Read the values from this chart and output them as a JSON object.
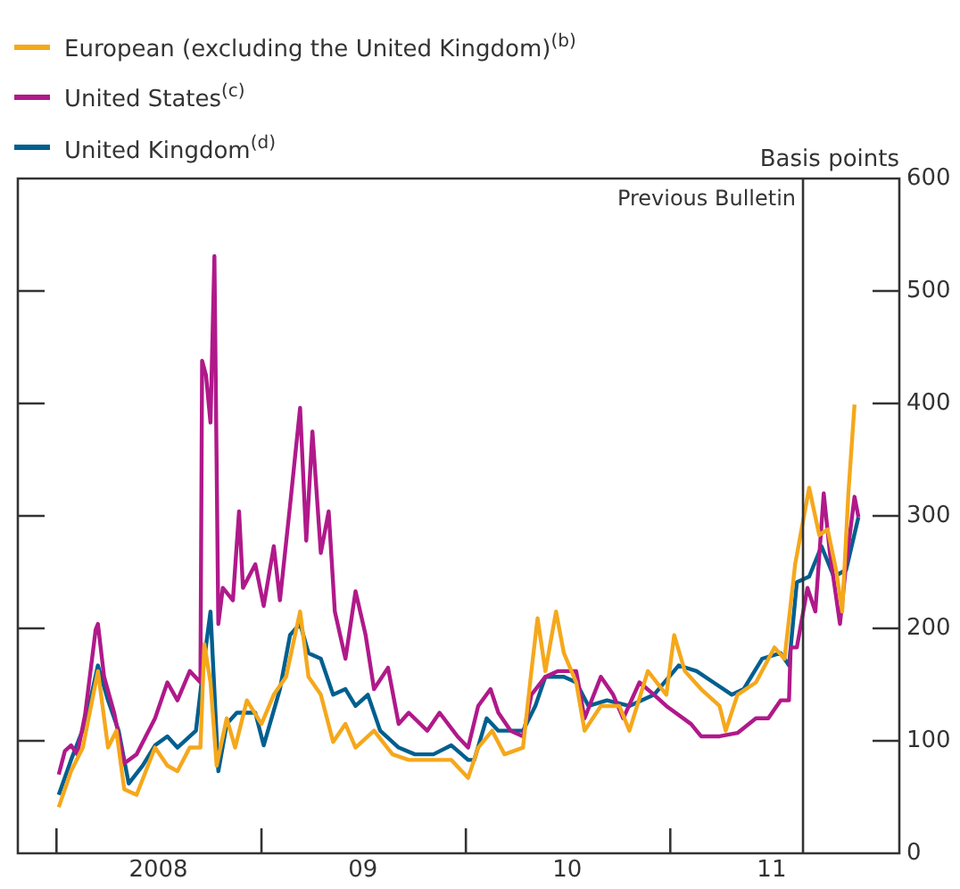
{
  "chart_data": {
    "type": "line",
    "ylabel": "Basis points",
    "legend": "top left",
    "marker": "none",
    "line_style": "solid",
    "grid": false,
    "xlim": [
      "2007-10-24",
      "2012-02-14"
    ],
    "ylim": [
      0,
      600
    ],
    "yticks": [
      0,
      100,
      200,
      300,
      400,
      500,
      600
    ],
    "xticks": [
      {
        "value": "2008-01-01",
        "label": null
      },
      {
        "value": "2008-07-01",
        "label": "2008"
      },
      {
        "value": "2009-01-01",
        "label": null
      },
      {
        "value": "2009-07-01",
        "label": "09"
      },
      {
        "value": "2010-01-01",
        "label": null
      },
      {
        "value": "2010-07-01",
        "label": "10"
      },
      {
        "value": "2011-01-01",
        "label": null
      },
      {
        "value": "2011-07-01",
        "label": "11"
      }
    ],
    "ref_lines": [
      {
        "axis": "x",
        "value": "2011-08-26",
        "label": "Previous Bulletin"
      }
    ],
    "series": [
      {
        "name": "European (excluding the United Kingdom)$^{(b)}$",
        "color": "#f5a81c",
        "x": [
          "2008-01-05",
          "2008-01-27",
          "2008-02-17",
          "2008-03-15",
          "2008-04-02",
          "2008-04-17",
          "2008-05-01",
          "2008-05-23",
          "2008-06-25",
          "2008-07-17",
          "2008-08-04",
          "2008-08-26",
          "2008-09-14",
          "2008-09-21",
          "2008-10-02",
          "2008-10-13",
          "2008-10-31",
          "2008-11-15",
          "2008-12-06",
          "2009-01-01",
          "2009-01-23",
          "2009-02-14",
          "2009-03-11",
          "2009-03-26",
          "2009-04-17",
          "2009-05-09",
          "2009-05-31",
          "2009-06-18",
          "2009-07-21",
          "2009-08-23",
          "2009-09-21",
          "2009-10-24",
          "2009-12-06",
          "2010-01-05",
          "2010-01-23",
          "2010-02-17",
          "2010-03-11",
          "2010-04-13",
          "2010-04-28",
          "2010-05-09",
          "2010-05-23",
          "2010-06-11",
          "2010-06-25",
          "2010-07-17",
          "2010-08-01",
          "2010-08-30",
          "2010-10-02",
          "2010-10-20",
          "2010-11-22",
          "2010-12-25",
          "2011-01-08",
          "2011-01-27",
          "2011-02-25",
          "2011-03-30",
          "2011-04-10",
          "2011-05-01",
          "2011-06-03",
          "2011-07-06",
          "2011-07-24",
          "2011-08-12",
          "2011-09-06",
          "2011-09-24",
          "2011-10-09",
          "2011-10-24",
          "2011-11-04",
          "2011-11-15",
          "2011-11-26"
        ],
        "values": [
          41,
          73,
          94,
          162,
          94,
          109,
          57,
          52,
          94,
          78,
          73,
          94,
          94,
          186,
          152,
          78,
          120,
          94,
          136,
          115,
          141,
          157,
          215,
          157,
          141,
          99,
          115,
          94,
          109,
          88,
          83,
          83,
          83,
          67,
          94,
          109,
          88,
          94,
          162,
          209,
          162,
          215,
          178,
          152,
          109,
          131,
          131,
          109,
          162,
          141,
          194,
          162,
          146,
          131,
          109,
          141,
          152,
          183,
          173,
          257,
          325,
          283,
          288,
          252,
          215,
          320,
          399
        ]
      },
      {
        "name": "United States$^{(c)}$",
        "color": "#b0198a",
        "x": [
          "2008-01-05",
          "2008-01-16",
          "2008-01-27",
          "2008-02-07",
          "2008-02-21",
          "2008-03-11",
          "2008-03-15",
          "2008-03-26",
          "2008-04-13",
          "2008-05-01",
          "2008-05-23",
          "2008-06-25",
          "2008-07-17",
          "2008-08-04",
          "2008-08-26",
          "2008-09-14",
          "2008-09-17",
          "2008-09-24",
          "2008-10-02",
          "2008-10-09",
          "2008-10-16",
          "2008-10-24",
          "2008-11-11",
          "2008-11-22",
          "2008-11-29",
          "2008-12-21",
          "2009-01-05",
          "2009-01-23",
          "2009-02-03",
          "2009-02-21",
          "2009-03-11",
          "2009-03-22",
          "2009-04-02",
          "2009-04-17",
          "2009-05-01",
          "2009-05-12",
          "2009-05-31",
          "2009-06-18",
          "2009-07-06",
          "2009-07-21",
          "2009-08-15",
          "2009-09-03",
          "2009-09-21",
          "2009-10-24",
          "2009-11-15",
          "2009-12-17",
          "2010-01-05",
          "2010-01-23",
          "2010-02-14",
          "2010-02-28",
          "2010-03-22",
          "2010-04-13",
          "2010-04-28",
          "2010-05-23",
          "2010-06-14",
          "2010-07-17",
          "2010-08-01",
          "2010-08-30",
          "2010-09-21",
          "2010-10-09",
          "2010-11-07",
          "2010-12-03",
          "2010-12-25",
          "2011-02-07",
          "2011-02-25",
          "2011-03-30",
          "2011-05-01",
          "2011-06-03",
          "2011-06-25",
          "2011-07-17",
          "2011-08-01",
          "2011-08-04",
          "2011-08-15",
          "2011-09-03",
          "2011-09-17",
          "2011-10-02",
          "2011-10-13",
          "2011-10-31",
          "2011-11-11",
          "2011-11-26",
          "2011-12-03"
        ],
        "values": [
          70,
          91,
          96,
          88,
          123,
          199,
          204,
          157,
          125,
          80,
          88,
          120,
          152,
          136,
          162,
          152,
          438,
          425,
          383,
          531,
          204,
          236,
          225,
          304,
          236,
          257,
          220,
          273,
          225,
          309,
          396,
          278,
          375,
          267,
          304,
          215,
          173,
          233,
          194,
          146,
          165,
          115,
          125,
          109,
          125,
          104,
          94,
          131,
          146,
          125,
          109,
          104,
          141,
          157,
          162,
          162,
          120,
          157,
          141,
          120,
          152,
          141,
          131,
          115,
          104,
          104,
          107,
          120,
          120,
          136,
          136,
          183,
          183,
          236,
          215,
          320,
          267,
          204,
          257,
          317,
          299
        ]
      },
      {
        "name": "United Kingdom$^{(d)}$",
        "color": "#005f8f",
        "x": [
          "2008-01-05",
          "2008-01-27",
          "2008-02-21",
          "2008-03-15",
          "2008-04-02",
          "2008-04-21",
          "2008-05-09",
          "2008-06-03",
          "2008-06-25",
          "2008-07-17",
          "2008-08-04",
          "2008-09-06",
          "2008-09-21",
          "2008-10-02",
          "2008-10-16",
          "2008-10-31",
          "2008-11-18",
          "2008-12-21",
          "2009-01-05",
          "2009-02-03",
          "2009-02-21",
          "2009-03-11",
          "2009-03-26",
          "2009-04-17",
          "2009-05-09",
          "2009-05-31",
          "2009-06-18",
          "2009-07-10",
          "2009-08-01",
          "2009-09-03",
          "2009-10-02",
          "2009-11-04",
          "2009-12-06",
          "2010-01-05",
          "2010-01-16",
          "2010-02-07",
          "2010-02-28",
          "2010-04-13",
          "2010-05-05",
          "2010-05-23",
          "2010-06-25",
          "2010-07-17",
          "2010-08-08",
          "2010-09-10",
          "2010-10-20",
          "2010-12-03",
          "2011-01-16",
          "2011-02-17",
          "2011-03-19",
          "2011-04-21",
          "2011-05-12",
          "2011-06-14",
          "2011-07-17",
          "2011-08-01",
          "2011-08-15",
          "2011-09-06",
          "2011-09-28",
          "2011-10-20",
          "2011-11-11",
          "2011-12-03"
        ],
        "values": [
          52,
          83,
          115,
          167,
          136,
          109,
          62,
          78,
          96,
          104,
          94,
          109,
          173,
          215,
          73,
          115,
          125,
          125,
          96,
          146,
          194,
          204,
          178,
          173,
          141,
          146,
          131,
          141,
          109,
          94,
          88,
          88,
          96,
          83,
          83,
          120,
          109,
          109,
          131,
          157,
          157,
          152,
          131,
          136,
          131,
          141,
          167,
          162,
          152,
          141,
          146,
          173,
          178,
          167,
          241,
          246,
          273,
          246,
          252,
          299
        ]
      }
    ]
  }
}
